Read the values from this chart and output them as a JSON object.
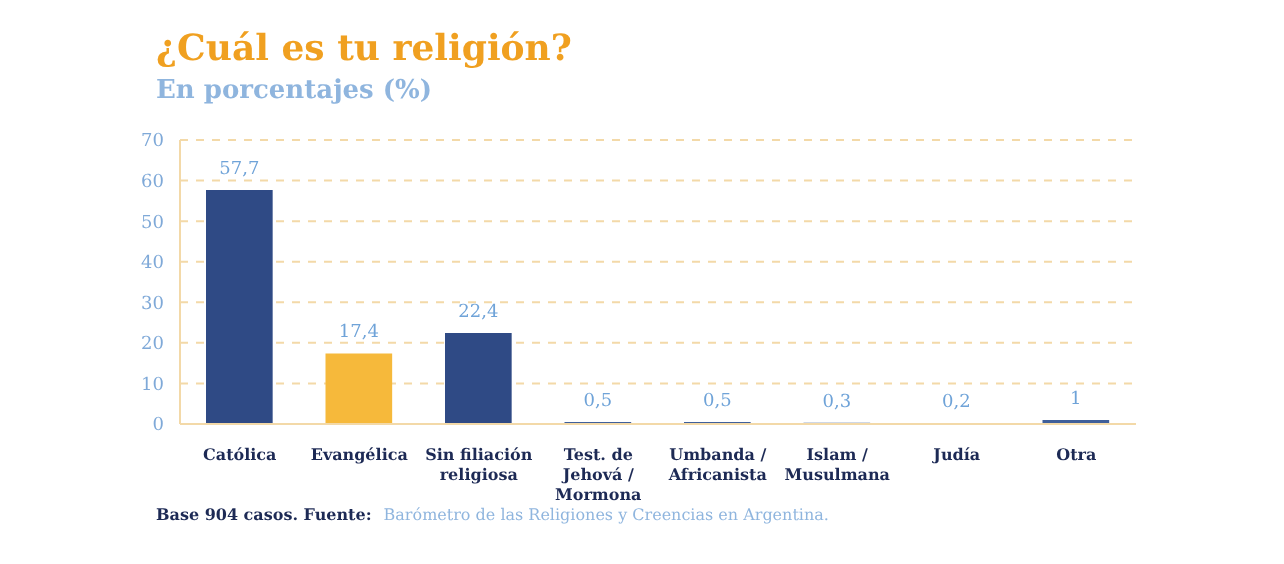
{
  "chart_data": {
    "type": "bar",
    "title": "¿Cuál es tu religión?",
    "subtitle": "En porcentajes (%)",
    "categories": [
      "Católica",
      "Evangélica",
      "Sin filiación religiosa",
      "Test. de Jehová / Mormona",
      "Umbanda / Africanista",
      "Islam / Musulmana",
      "Judía",
      "Otra"
    ],
    "values": [
      57.7,
      17.4,
      22.4,
      0.5,
      0.5,
      0.3,
      0.2,
      1
    ],
    "value_labels": [
      "57,7",
      "17,4",
      "22,4",
      "0,5",
      "0,5",
      "0,3",
      "0,2",
      "1"
    ],
    "colors": [
      "#2f4a85",
      "#f6b93b",
      "#2f4a85",
      "#3f5f9a",
      "#3f5f9a",
      "#3f5f9a",
      "#3f5f9a",
      "#3f5f9a"
    ],
    "ylim": [
      0,
      70
    ],
    "yticks": [
      0,
      10,
      20,
      30,
      40,
      50,
      60,
      70
    ],
    "grid": "y",
    "annotations": [
      "Base 904 casos.  Fuente:",
      "Barómetro de las Religiones y Creencias en Argentina."
    ]
  }
}
